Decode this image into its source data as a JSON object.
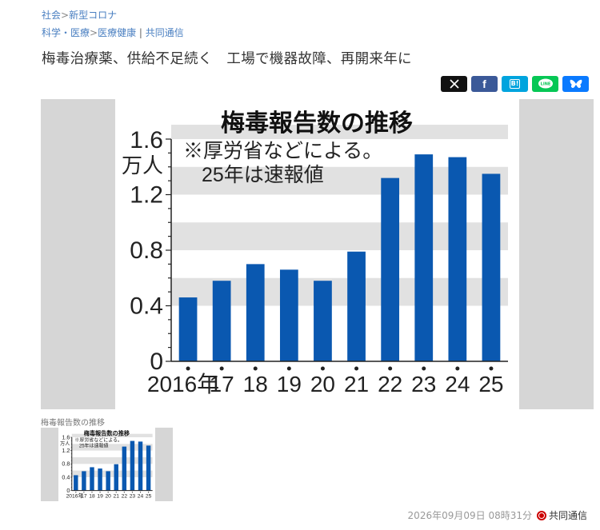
{
  "breadcrumb1": {
    "item1": "社会",
    "sep": ">",
    "item2": "新型コロナ"
  },
  "breadcrumb2": {
    "item1": "科学・医療",
    "sep": ">",
    "item2": "医療健康",
    "divider": "|",
    "item3": "共同通信"
  },
  "title": "梅毒治療薬、供給不足続く　工場で機器故障、再開来年に",
  "share": {
    "x": "X",
    "facebook": "f",
    "hatena": "B!",
    "line": "LINE",
    "bluesky": "bluesky",
    "colors": {
      "x": "#111111",
      "facebook": "#3b5998",
      "hatena": "#00a4de",
      "line": "#06c755",
      "bluesky": "#0a7aff"
    }
  },
  "chart_data": {
    "type": "bar",
    "title": "梅毒報告数の推移",
    "note_line1": "※厚労省などによる。",
    "note_line2": "25年は速報値",
    "unit_line1": "1.6",
    "unit_line2": "万人",
    "categories": [
      "2016年",
      "17",
      "18",
      "19",
      "20",
      "21",
      "22",
      "23",
      "24",
      "25"
    ],
    "values": [
      0.46,
      0.58,
      0.7,
      0.66,
      0.58,
      0.79,
      1.32,
      1.49,
      1.47,
      1.35
    ],
    "yticks": [
      "0",
      "0.4",
      "0.8",
      "1.2"
    ],
    "ylim": [
      0,
      1.6
    ],
    "bar_color": "#0a58b0",
    "band_color": "#e1e1e1",
    "grid": true
  },
  "caption": "梅毒報告数の推移",
  "footer": {
    "datetime": "2026年09月09日 08時31分",
    "source": "共同通信"
  }
}
